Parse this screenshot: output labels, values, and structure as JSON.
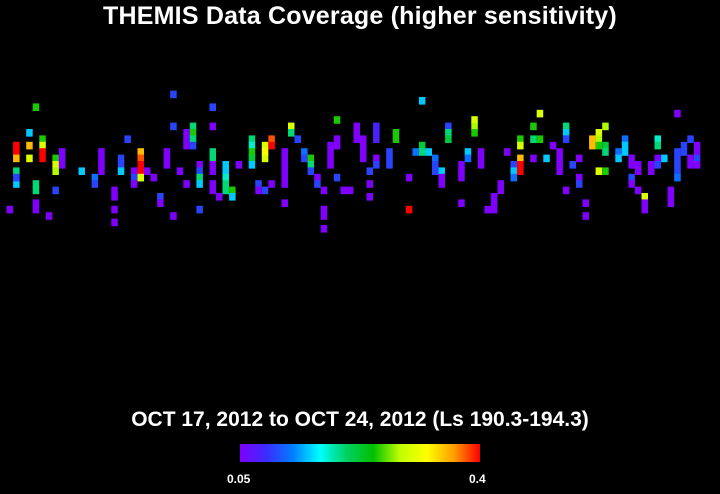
{
  "title": "THEMIS Data Coverage (higher sensitivity)",
  "subtitle": "OCT 17, 2012 to OCT 24, 2012 (Ls 190.3-194.3)",
  "colorbar": {
    "min_label": "0.05",
    "max_label": "0.4",
    "min": 0.05,
    "max": 0.4,
    "colormap": [
      "#8000ff",
      "#3a2cff",
      "#0080ff",
      "#00ffff",
      "#00d060",
      "#00c000",
      "#c0ff00",
      "#ffff00",
      "#ffa000",
      "#ff0000"
    ]
  },
  "chart_data": {
    "type": "heatmap",
    "title": "THEMIS Data Coverage (higher sensitivity)",
    "subtitle": "OCT 17, 2012 to OCT 24, 2012 (Ls 190.3-194.3)",
    "colorbar_range": [
      0.05,
      0.4
    ],
    "grid": false,
    "legend": "colorbar bottom-center",
    "columns": 80,
    "rows": 37,
    "cells": [
      [
        1,
        32,
        0.05
      ],
      [
        2,
        28,
        0.15
      ],
      [
        2,
        22,
        0.45
      ],
      [
        2,
        23,
        0.4
      ],
      [
        2,
        24,
        0.35
      ],
      [
        2,
        26,
        0.2
      ],
      [
        2,
        27,
        0.1
      ],
      [
        4,
        20,
        0.15
      ],
      [
        4,
        22,
        0.35
      ],
      [
        4,
        24,
        0.3
      ],
      [
        5,
        16,
        0.25
      ],
      [
        5,
        28,
        0.2
      ],
      [
        5,
        29,
        0.2
      ],
      [
        5,
        31,
        0.05
      ],
      [
        5,
        32,
        0.05
      ],
      [
        6,
        21,
        0.25
      ],
      [
        6,
        22,
        0.3
      ],
      [
        6,
        23,
        0.4
      ],
      [
        6,
        24,
        0.45
      ],
      [
        7,
        33,
        0.05
      ],
      [
        8,
        24,
        0.25
      ],
      [
        8,
        25,
        0.3
      ],
      [
        8,
        26,
        0.28
      ],
      [
        8,
        29,
        0.1
      ],
      [
        9,
        23,
        0.05
      ],
      [
        9,
        24,
        0.05
      ],
      [
        9,
        25,
        0.05
      ],
      [
        12,
        26,
        0.15
      ],
      [
        14,
        27,
        0.12
      ],
      [
        14,
        28,
        0.1
      ],
      [
        15,
        23,
        0.05
      ],
      [
        15,
        24,
        0.05
      ],
      [
        15,
        25,
        0.05
      ],
      [
        15,
        26,
        0.05
      ],
      [
        17,
        29,
        0.05
      ],
      [
        17,
        30,
        0.05
      ],
      [
        17,
        32,
        0.05
      ],
      [
        17,
        34,
        0.05
      ],
      [
        18,
        24,
        0.1
      ],
      [
        18,
        25,
        0.1
      ],
      [
        18,
        26,
        0.15
      ],
      [
        19,
        21,
        0.1
      ],
      [
        20,
        26,
        0.05
      ],
      [
        20,
        27,
        0.1
      ],
      [
        20,
        28,
        0.05
      ],
      [
        21,
        23,
        0.35
      ],
      [
        21,
        24,
        0.38
      ],
      [
        21,
        25,
        0.42
      ],
      [
        21,
        26,
        0.45
      ],
      [
        21,
        27,
        0.3
      ],
      [
        22,
        26,
        0.05
      ],
      [
        23,
        27,
        0.05
      ],
      [
        24,
        30,
        0.1
      ],
      [
        24,
        31,
        0.05
      ],
      [
        25,
        23,
        0.05
      ],
      [
        25,
        24,
        0.05
      ],
      [
        25,
        25,
        0.05
      ],
      [
        26,
        14,
        0.1
      ],
      [
        26,
        19,
        0.1
      ],
      [
        26,
        33,
        0.05
      ],
      [
        27,
        26,
        0.05
      ],
      [
        28,
        20,
        0.05
      ],
      [
        28,
        21,
        0.05
      ],
      [
        28,
        22,
        0.05
      ],
      [
        28,
        28,
        0.05
      ],
      [
        29,
        19,
        0.2
      ],
      [
        29,
        20,
        0.25
      ],
      [
        29,
        21,
        0.2
      ],
      [
        29,
        22,
        0.1
      ],
      [
        30,
        25,
        0.05
      ],
      [
        30,
        26,
        0.1
      ],
      [
        30,
        27,
        0.2
      ],
      [
        30,
        28,
        0.15
      ],
      [
        30,
        32,
        0.1
      ],
      [
        32,
        16,
        0.1
      ],
      [
        32,
        19,
        0.05
      ],
      [
        32,
        23,
        0.2
      ],
      [
        32,
        24,
        0.2
      ],
      [
        32,
        25,
        0.05
      ],
      [
        32,
        26,
        0.05
      ],
      [
        32,
        28,
        0.05
      ],
      [
        32,
        29,
        0.05
      ],
      [
        33,
        30,
        0.05
      ],
      [
        34,
        25,
        0.15
      ],
      [
        34,
        26,
        0.15
      ],
      [
        34,
        27,
        0.18
      ],
      [
        34,
        28,
        0.2
      ],
      [
        35,
        29,
        0.25
      ],
      [
        35,
        30,
        0.15
      ],
      [
        34,
        29,
        0.2
      ],
      [
        36,
        25,
        0.05
      ],
      [
        38,
        21,
        0.2
      ],
      [
        38,
        22,
        0.18
      ],
      [
        38,
        23,
        0.25
      ],
      [
        38,
        24,
        0.22
      ],
      [
        38,
        25,
        0.15
      ],
      [
        39,
        28,
        0.1
      ],
      [
        39,
        29,
        0.05
      ],
      [
        40,
        22,
        0.3
      ],
      [
        40,
        23,
        0.32
      ],
      [
        40,
        24,
        0.3
      ],
      [
        40,
        29,
        0.1
      ],
      [
        41,
        21,
        0.38
      ],
      [
        41,
        22,
        0.4
      ],
      [
        41,
        28,
        0.05
      ],
      [
        43,
        23,
        0.05
      ],
      [
        43,
        24,
        0.05
      ],
      [
        43,
        25,
        0.05
      ],
      [
        43,
        26,
        0.05
      ],
      [
        43,
        27,
        0.05
      ],
      [
        43,
        28,
        0.05
      ],
      [
        43,
        31,
        0.05
      ],
      [
        44,
        19,
        0.3
      ],
      [
        44,
        20,
        0.2
      ],
      [
        45,
        21,
        0.1
      ],
      [
        46,
        23,
        0.12
      ],
      [
        46,
        24,
        0.1
      ],
      [
        47,
        24,
        0.25
      ],
      [
        47,
        25,
        0.2
      ],
      [
        47,
        26,
        0.1
      ],
      [
        48,
        27,
        0.05
      ],
      [
        48,
        28,
        0.1
      ],
      [
        49,
        29,
        0.05
      ],
      [
        49,
        32,
        0.05
      ],
      [
        49,
        33,
        0.05
      ],
      [
        49,
        35,
        0.05
      ],
      [
        50,
        22,
        0.05
      ],
      [
        50,
        23,
        0.05
      ],
      [
        50,
        24,
        0.05
      ],
      [
        50,
        25,
        0.05
      ],
      [
        51,
        18,
        0.25
      ],
      [
        51,
        21,
        0.05
      ],
      [
        51,
        22,
        0.05
      ],
      [
        51,
        27,
        0.1
      ],
      [
        52,
        29,
        0.05
      ],
      [
        53,
        29,
        0.05
      ],
      [
        54,
        19,
        0.05
      ],
      [
        54,
        20,
        0.05
      ],
      [
        54,
        21,
        0.05
      ],
      [
        55,
        21,
        0.05
      ],
      [
        55,
        22,
        0.05
      ],
      [
        55,
        23,
        0.05
      ],
      [
        55,
        24,
        0.05
      ],
      [
        56,
        26,
        0.1
      ],
      [
        56,
        28,
        0.05
      ],
      [
        56,
        30,
        0.05
      ],
      [
        57,
        19,
        0.08
      ],
      [
        57,
        20,
        0.08
      ],
      [
        57,
        21,
        0.08
      ],
      [
        57,
        24,
        0.05
      ],
      [
        57,
        25,
        0.1
      ],
      [
        59,
        23,
        0.1
      ],
      [
        59,
        24,
        0.1
      ],
      [
        59,
        25,
        0.1
      ],
      [
        60,
        20,
        0.25
      ],
      [
        60,
        21,
        0.25
      ],
      [
        62,
        27,
        0.05
      ],
      [
        62,
        32,
        0.42
      ],
      [
        63,
        23,
        0.12
      ],
      [
        64,
        15,
        0.15
      ],
      [
        64,
        22,
        0.22
      ],
      [
        64,
        23,
        0.2
      ],
      [
        65,
        23,
        0.15
      ],
      [
        66,
        24,
        0.12
      ],
      [
        66,
        25,
        0.1
      ],
      [
        66,
        26,
        0.1
      ],
      [
        67,
        26,
        0.15
      ],
      [
        67,
        27,
        0.05
      ],
      [
        67,
        28,
        0.05
      ],
      [
        68,
        19,
        0.1
      ],
      [
        68,
        20,
        0.2
      ],
      [
        68,
        21,
        0.22
      ],
      [
        70,
        25,
        0.05
      ],
      [
        70,
        26,
        0.05
      ],
      [
        70,
        27,
        0.05
      ],
      [
        70,
        31,
        0.05
      ],
      [
        71,
        23,
        0.15
      ],
      [
        71,
        24,
        0.12
      ],
      [
        72,
        18,
        0.3
      ],
      [
        72,
        19,
        0.28
      ],
      [
        72,
        20,
        0.25
      ],
      [
        73,
        23,
        0.05
      ],
      [
        73,
        24,
        0.05
      ],
      [
        73,
        25,
        0.05
      ],
      [
        74,
        32,
        0.05
      ],
      [
        75,
        30,
        0.05
      ],
      [
        75,
        31,
        0.05
      ],
      [
        75,
        32,
        0.05
      ],
      [
        76,
        28,
        0.05
      ],
      [
        76,
        29,
        0.05
      ],
      [
        77,
        23,
        0.05
      ],
      [
        78,
        25,
        0.1
      ],
      [
        78,
        26,
        0.15
      ],
      [
        78,
        27,
        0.12
      ],
      [
        79,
        21,
        0.25
      ],
      [
        79,
        22,
        0.3
      ],
      [
        79,
        24,
        0.35
      ],
      [
        79,
        25,
        0.4
      ],
      [
        79,
        26,
        0.42
      ],
      [
        81,
        19,
        0.25
      ],
      [
        81,
        21,
        0.2
      ],
      [
        81,
        24,
        0.05
      ],
      [
        82,
        17,
        0.3
      ],
      [
        82,
        21,
        0.25
      ],
      [
        83,
        24,
        0.15
      ],
      [
        84,
        22,
        0.05
      ],
      [
        85,
        23,
        0.05
      ],
      [
        85,
        24,
        0.05
      ],
      [
        85,
        25,
        0.05
      ],
      [
        85,
        26,
        0.05
      ],
      [
        86,
        19,
        0.2
      ],
      [
        86,
        20,
        0.15
      ],
      [
        86,
        21,
        0.1
      ],
      [
        86,
        29,
        0.05
      ],
      [
        87,
        25,
        0.1
      ],
      [
        88,
        24,
        0.05
      ],
      [
        88,
        27,
        0.05
      ],
      [
        88,
        28,
        0.1
      ],
      [
        89,
        31,
        0.05
      ],
      [
        89,
        33,
        0.05
      ],
      [
        90,
        21,
        0.35
      ],
      [
        90,
        22,
        0.35
      ],
      [
        91,
        20,
        0.3
      ],
      [
        91,
        21,
        0.28
      ],
      [
        91,
        22,
        0.25
      ],
      [
        91,
        26,
        0.3
      ],
      [
        92,
        19,
        0.28
      ],
      [
        92,
        22,
        0.22
      ],
      [
        92,
        23,
        0.2
      ],
      [
        92,
        26,
        0.25
      ],
      [
        94,
        23,
        0.12
      ],
      [
        94,
        24,
        0.15
      ],
      [
        95,
        21,
        0.12
      ],
      [
        95,
        22,
        0.15
      ],
      [
        95,
        23,
        0.15
      ],
      [
        96,
        24,
        0.05
      ],
      [
        96,
        25,
        0.05
      ],
      [
        96,
        27,
        0.1
      ],
      [
        96,
        28,
        0.05
      ],
      [
        97,
        25,
        0.05
      ],
      [
        97,
        26,
        0.05
      ],
      [
        97,
        29,
        0.05
      ],
      [
        98,
        30,
        0.3
      ],
      [
        98,
        31,
        0.05
      ],
      [
        98,
        32,
        0.05
      ],
      [
        99,
        25,
        0.05
      ],
      [
        99,
        26,
        0.05
      ],
      [
        100,
        21,
        0.18
      ],
      [
        100,
        22,
        0.2
      ],
      [
        100,
        24,
        0.05
      ],
      [
        100,
        25,
        0.1
      ],
      [
        101,
        24,
        0.15
      ],
      [
        102,
        29,
        0.05
      ],
      [
        102,
        30,
        0.05
      ],
      [
        102,
        31,
        0.05
      ],
      [
        103,
        17,
        0.05
      ],
      [
        103,
        23,
        0.1
      ],
      [
        103,
        24,
        0.1
      ],
      [
        103,
        25,
        0.1
      ],
      [
        103,
        26,
        0.1
      ],
      [
        103,
        27,
        0.12
      ],
      [
        104,
        22,
        0.1
      ],
      [
        104,
        23,
        0.1
      ],
      [
        105,
        21,
        0.1
      ],
      [
        105,
        24,
        0.05
      ],
      [
        105,
        25,
        0.05
      ],
      [
        106,
        22,
        0.05
      ],
      [
        106,
        23,
        0.05
      ],
      [
        106,
        24,
        0.1
      ],
      [
        106,
        25,
        0.05
      ]
    ]
  }
}
